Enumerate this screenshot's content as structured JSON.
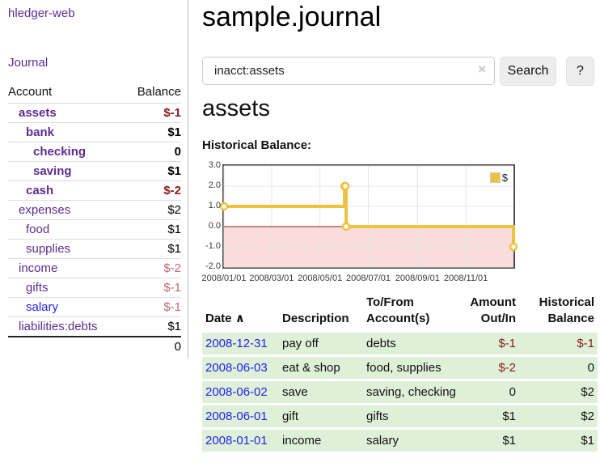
{
  "colors": {
    "link_purple": "#5c2d91",
    "link_blue": "#2222ee",
    "neg_strong": "#8b1a1a",
    "neg_soft": "#bd6a6e",
    "row_green": "#dff0d8",
    "chart_line": "#edc240",
    "chart_negative_fill": "#fbdcdc",
    "chart_zero_line": "#8b1a1a",
    "chart_grid": "#e4e4e4",
    "chart_border": "#4d4d4d"
  },
  "sidebar": {
    "app_title": "hledger-web",
    "nav_journal": "Journal",
    "accounts_header": {
      "account": "Account",
      "balance": "Balance"
    },
    "accounts": [
      {
        "label": "assets",
        "balance": "$-1",
        "indent": 1,
        "bold": true,
        "neg": "strong"
      },
      {
        "label": "bank",
        "balance": "$1",
        "indent": 2,
        "bold": true,
        "neg": null
      },
      {
        "label": "checking",
        "balance": "0",
        "indent": 3,
        "bold": true,
        "neg": null
      },
      {
        "label": "saving",
        "balance": "$1",
        "indent": 3,
        "bold": true,
        "neg": null
      },
      {
        "label": "cash",
        "balance": "$-2",
        "indent": 2,
        "bold": true,
        "neg": "strong"
      },
      {
        "label": "expenses",
        "balance": "$2",
        "indent": 1,
        "bold": false,
        "neg": null
      },
      {
        "label": "food",
        "balance": "$1",
        "indent": 2,
        "bold": false,
        "neg": null
      },
      {
        "label": "supplies",
        "balance": "$1",
        "indent": 2,
        "bold": false,
        "neg": null
      },
      {
        "label": "income",
        "balance": "$-2",
        "indent": 1,
        "bold": false,
        "neg": "soft"
      },
      {
        "label": "gifts",
        "balance": "$-1",
        "indent": 2,
        "bold": false,
        "neg": "soft"
      },
      {
        "label": "salary",
        "balance": "$-1",
        "indent": 2,
        "bold": false,
        "neg": "soft",
        "unvisited": true
      },
      {
        "label": "liabilities:debts",
        "balance": "$1",
        "indent": 1,
        "bold": false,
        "neg": null
      }
    ],
    "total": "0"
  },
  "main": {
    "title": "sample.journal",
    "search": {
      "value": "inacct:assets",
      "clear_icon": "×",
      "button_label": "Search",
      "help_label": "?"
    },
    "account_heading": "assets",
    "chart_title": "Historical Balance:"
  },
  "chart_data": {
    "type": "line",
    "step": true,
    "title": "Historical Balance",
    "series": [
      {
        "name": "$",
        "points": [
          {
            "date": "2008-01-01",
            "value": 1
          },
          {
            "date": "2008-06-01",
            "value": 2
          },
          {
            "date": "2008-06-02",
            "value": 2
          },
          {
            "date": "2008-06-03",
            "value": 0
          },
          {
            "date": "2008-12-31",
            "value": -1
          }
        ]
      }
    ],
    "xrange": [
      "2008-01-01",
      "2008-12-31"
    ],
    "ylim": [
      -2,
      3
    ],
    "yticks": [
      {
        "value": 3,
        "label": "3.0"
      },
      {
        "value": 2,
        "label": "2.0"
      },
      {
        "value": 1,
        "label": "1.0"
      },
      {
        "value": 0,
        "label": "0.0"
      },
      {
        "value": -1,
        "label": "-1.0"
      },
      {
        "value": -2,
        "label": "-2.0"
      }
    ],
    "xticks": [
      {
        "date": "2008-01-01",
        "label": "2008/01/01"
      },
      {
        "date": "2008-03-01",
        "label": "2008/03/01"
      },
      {
        "date": "2008-05-01",
        "label": "2008/05/01"
      },
      {
        "date": "2008-07-01",
        "label": "2008/07/01"
      },
      {
        "date": "2008-09-01",
        "label": "2008/09/01"
      },
      {
        "date": "2008-11-01",
        "label": "2008/11/01"
      }
    ],
    "legend": {
      "label": "$",
      "position": "top-right"
    },
    "grid": true
  },
  "table": {
    "headers": {
      "date": "Date",
      "sort_icon": "∧",
      "description": "Description",
      "accounts": "To/From Account(s)",
      "amount": "Amount Out/In",
      "balance": "Historical Balance"
    },
    "rows": [
      {
        "date": "2008-12-31",
        "description": "pay off",
        "accounts": "debts",
        "amount": "$-1",
        "balance": "$-1",
        "amount_neg": true,
        "balance_neg": true
      },
      {
        "date": "2008-06-03",
        "description": "eat & shop",
        "accounts": "food, supplies",
        "amount": "$-2",
        "balance": "0",
        "amount_neg": true,
        "balance_neg": false
      },
      {
        "date": "2008-06-02",
        "description": "save",
        "accounts": "saving, checking",
        "amount": "0",
        "balance": "$2",
        "amount_neg": false,
        "balance_neg": false
      },
      {
        "date": "2008-06-01",
        "description": "gift",
        "accounts": "gifts",
        "amount": "$1",
        "balance": "$2",
        "amount_neg": false,
        "balance_neg": false
      },
      {
        "date": "2008-01-01",
        "description": "income",
        "accounts": "salary",
        "amount": "$1",
        "balance": "$1",
        "amount_neg": false,
        "balance_neg": false
      }
    ]
  }
}
